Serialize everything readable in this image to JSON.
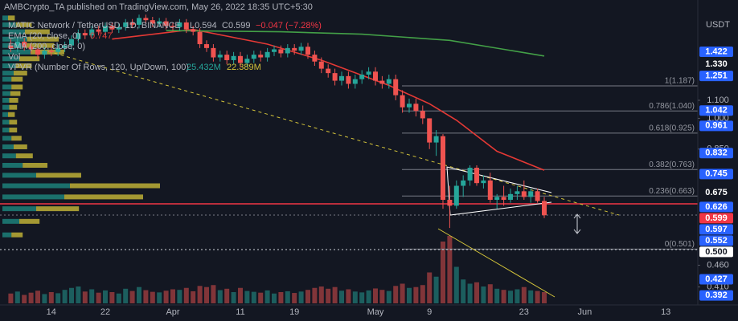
{
  "chart_data": {
    "type": "candlestick",
    "title": "AMBCrypto_TA published on TradingView.com, May 26, 2022 18:35 UTC+5:30",
    "symbol": "MATIC Network / TetherUSD, 1D, BINANCE",
    "ohlc_text": [
      "L0.594",
      "C0.599",
      "−0.047 (−7.28%)"
    ],
    "currency": "USDT",
    "categories": [
      null,
      null,
      null,
      null,
      null,
      null,
      "14",
      null,
      null,
      null,
      null,
      null,
      null,
      null,
      "22",
      null,
      null,
      null,
      null,
      null,
      null,
      null,
      null,
      null,
      "Apr",
      null,
      null,
      null,
      null,
      null,
      null,
      null,
      null,
      null,
      "11",
      null,
      null,
      null,
      null,
      null,
      null,
      null,
      "19",
      null,
      null,
      null,
      null,
      null,
      null,
      null,
      null,
      null,
      null,
      null,
      "May",
      null,
      null,
      null,
      null,
      null,
      null,
      null,
      "9",
      null,
      null,
      null,
      null,
      null,
      null,
      null,
      null,
      null,
      null,
      null,
      null,
      null,
      "23",
      null,
      null,
      null,
      null,
      null,
      null,
      null,
      null,
      "Jun",
      null,
      null,
      null,
      null,
      null,
      null,
      null,
      null,
      null,
      null,
      null,
      "13",
      null,
      null
    ],
    "open": [
      1.47,
      1.45,
      1.5,
      1.46,
      1.44,
      1.4,
      1.43,
      1.42,
      1.45,
      1.47,
      1.52,
      1.57,
      1.55,
      1.6,
      1.58,
      1.63,
      1.6,
      1.62,
      1.66,
      1.64,
      1.7,
      1.68,
      1.65,
      1.67,
      1.63,
      1.62,
      1.66,
      1.6,
      1.58,
      1.48,
      1.45,
      1.38,
      1.4,
      1.36,
      1.39,
      1.34,
      1.37,
      1.4,
      1.38,
      1.42,
      1.44,
      1.41,
      1.45,
      1.43,
      1.46,
      1.4,
      1.35,
      1.3,
      1.27,
      1.22,
      1.25,
      1.2,
      1.23,
      1.26,
      1.28,
      1.22,
      1.2,
      1.23,
      1.13,
      1.06,
      1.08,
      1.04,
      1.0,
      0.88,
      0.91,
      0.65,
      0.63,
      0.7,
      0.72,
      0.77,
      0.71,
      0.72,
      0.65,
      0.66,
      0.65,
      0.67,
      0.68,
      0.66,
      0.68,
      0.646,
      null,
      null,
      null,
      null,
      null,
      null,
      null,
      null,
      null,
      null,
      null,
      null,
      null,
      null,
      null,
      null,
      null,
      null,
      null,
      null
    ],
    "high": [
      1.52,
      1.53,
      1.53,
      1.49,
      1.47,
      1.46,
      1.46,
      1.48,
      1.5,
      1.55,
      1.6,
      1.6,
      1.63,
      1.63,
      1.66,
      1.66,
      1.65,
      1.69,
      1.69,
      1.73,
      1.73,
      1.71,
      1.7,
      1.7,
      1.66,
      1.69,
      1.69,
      1.63,
      1.61,
      1.51,
      1.48,
      1.43,
      1.43,
      1.42,
      1.42,
      1.4,
      1.43,
      1.43,
      1.45,
      1.47,
      1.47,
      1.48,
      1.48,
      1.49,
      1.49,
      1.43,
      1.38,
      1.33,
      1.3,
      1.28,
      1.28,
      1.26,
      1.29,
      1.31,
      1.31,
      1.25,
      1.26,
      1.26,
      1.16,
      1.11,
      1.11,
      1.07,
      1.0,
      0.94,
      0.92,
      0.7,
      0.72,
      0.74,
      0.78,
      0.78,
      0.74,
      0.75,
      0.67,
      0.7,
      0.69,
      0.7,
      0.72,
      0.69,
      0.69,
      0.66,
      null,
      null,
      null,
      null,
      null,
      null,
      null,
      null,
      null,
      null,
      null,
      null,
      null,
      null,
      null,
      null,
      null,
      null,
      null,
      null
    ],
    "low": [
      1.42,
      1.42,
      1.43,
      1.41,
      1.37,
      1.37,
      1.39,
      1.39,
      1.42,
      1.44,
      1.49,
      1.52,
      1.52,
      1.55,
      1.55,
      1.57,
      1.57,
      1.59,
      1.61,
      1.61,
      1.65,
      1.62,
      1.62,
      1.6,
      1.59,
      1.59,
      1.57,
      1.55,
      1.45,
      1.42,
      1.35,
      1.35,
      1.33,
      1.33,
      1.31,
      1.31,
      1.34,
      1.35,
      1.35,
      1.39,
      1.38,
      1.38,
      1.4,
      1.4,
      1.37,
      1.32,
      1.27,
      1.24,
      1.19,
      1.19,
      1.17,
      1.17,
      1.2,
      1.23,
      1.19,
      1.17,
      1.17,
      1.1,
      1.03,
      1.03,
      1.01,
      0.97,
      0.85,
      0.82,
      0.62,
      0.56,
      0.62,
      0.66,
      0.7,
      0.7,
      0.69,
      0.64,
      0.62,
      0.63,
      0.64,
      0.65,
      0.65,
      0.64,
      0.64,
      0.59,
      null,
      null,
      null,
      null,
      null,
      null,
      null,
      null,
      null,
      null,
      null,
      null,
      null,
      null,
      null,
      null,
      null,
      null,
      null,
      null
    ],
    "close": [
      1.45,
      1.5,
      1.46,
      1.44,
      1.4,
      1.43,
      1.42,
      1.45,
      1.47,
      1.52,
      1.57,
      1.55,
      1.6,
      1.58,
      1.63,
      1.6,
      1.62,
      1.66,
      1.64,
      1.7,
      1.68,
      1.65,
      1.67,
      1.63,
      1.62,
      1.66,
      1.6,
      1.58,
      1.48,
      1.45,
      1.38,
      1.4,
      1.36,
      1.39,
      1.34,
      1.37,
      1.4,
      1.38,
      1.42,
      1.44,
      1.41,
      1.45,
      1.43,
      1.46,
      1.4,
      1.35,
      1.3,
      1.27,
      1.22,
      1.25,
      1.2,
      1.23,
      1.26,
      1.28,
      1.22,
      1.2,
      1.23,
      1.13,
      1.06,
      1.08,
      1.04,
      1.0,
      0.88,
      0.91,
      0.65,
      0.63,
      0.7,
      0.72,
      0.77,
      0.71,
      0.72,
      0.65,
      0.66,
      0.65,
      0.67,
      0.68,
      0.66,
      0.68,
      0.646,
      0.599,
      null,
      null,
      null,
      null,
      null,
      null,
      null,
      null,
      null,
      null,
      null,
      null,
      null,
      null,
      null,
      null,
      null,
      null,
      null,
      null
    ],
    "volume": [
      35,
      42,
      30,
      38,
      45,
      33,
      40,
      36,
      48,
      55,
      60,
      42,
      50,
      38,
      46,
      40,
      35,
      52,
      44,
      58,
      47,
      41,
      39,
      45,
      50,
      48,
      55,
      43,
      62,
      58,
      65,
      47,
      52,
      40,
      55,
      44,
      41,
      38,
      46,
      35,
      40,
      43,
      37,
      42,
      48,
      55,
      60,
      52,
      58,
      45,
      50,
      42,
      39,
      46,
      53,
      48,
      44,
      62,
      70,
      55,
      58,
      65,
      110,
      95,
      220,
      240,
      130,
      85,
      70,
      75,
      60,
      68,
      52,
      48,
      45,
      50,
      58,
      46,
      44,
      40,
      null,
      null,
      null,
      null,
      null,
      null,
      null,
      null,
      null,
      null,
      null,
      null,
      null,
      null,
      null,
      null,
      null,
      null,
      null,
      null
    ],
    "volume_label": "Vol",
    "up_color": "#26a69a",
    "down_color": "#ef5350",
    "log_scale": true,
    "ylim": [
      0.376,
      1.83
    ],
    "yticks": [
      {
        "value": 1.1,
        "label": "1.100"
      },
      {
        "value": 1.0,
        "label": "1.000"
      },
      {
        "value": 0.85,
        "label": "0.850"
      },
      {
        "value": 0.46,
        "label": "0.460"
      },
      {
        "value": 0.41,
        "label": "0.410"
      }
    ],
    "price_markers": [
      {
        "value": 1.422,
        "label": "1.422",
        "color": "#2962ff"
      },
      {
        "value": 1.33,
        "label": "1.330",
        "color": "#131722"
      },
      {
        "value": 1.251,
        "label": "1.251",
        "color": "#2962ff"
      },
      {
        "value": 1.042,
        "label": "1.042",
        "color": "#2962ff"
      },
      {
        "value": 0.961,
        "label": "0.961",
        "color": "#2962ff"
      },
      {
        "value": 0.832,
        "label": "0.832",
        "color": "#2962ff"
      },
      {
        "value": 0.745,
        "label": "0.745",
        "color": "#2962ff"
      },
      {
        "value": 0.675,
        "label": "0.675",
        "color": "#131722"
      },
      {
        "value": 0.626,
        "label": "0.626",
        "color": "#2962ff"
      },
      {
        "value": 0.599,
        "label": "0.599",
        "color": "#f23645"
      },
      {
        "value": 0.597,
        "label": "0.597",
        "color": "#2962ff"
      },
      {
        "value": 0.552,
        "label": "0.552",
        "color": "#2962ff"
      },
      {
        "value": 0.5,
        "label": "0.500",
        "color": "#ffffff"
      },
      {
        "value": 0.427,
        "label": "0.427",
        "color": "#2962ff"
      },
      {
        "value": 0.392,
        "label": "0.392",
        "color": "#2962ff"
      }
    ],
    "fib_levels": [
      {
        "value": 1.187,
        "label": "1(1.187)"
      },
      {
        "value": 1.04,
        "label": "0.786(1.040)"
      },
      {
        "value": 0.925,
        "label": "0.618(0.925)"
      },
      {
        "value": 0.763,
        "label": "0.382(0.763)"
      },
      {
        "value": 0.663,
        "label": "0.236(0.663)"
      },
      {
        "value": 0.501,
        "label": "0(0.501)"
      }
    ],
    "lines": [
      {
        "name": "EMA (20, close, 0)",
        "value_label": "0.747",
        "color": "#e53935",
        "x": [
          15,
          27,
          38,
          46,
          56,
          62,
          66,
          72,
          79
        ],
        "values": [
          1.52,
          1.6,
          1.48,
          1.36,
          1.19,
          1.08,
          0.99,
          0.84,
          0.76
        ]
      },
      {
        "name": "EMA (200, close, 0)",
        "color": "#43a047",
        "x": [
          23,
          40,
          52,
          65,
          79
        ],
        "values": [
          1.59,
          1.58,
          1.56,
          1.51,
          1.39
        ]
      }
    ],
    "vpvr": {
      "name": "VPVR (Number Of Rows, 120, Up/Down, 100)",
      "stats": [
        "25.432M",
        "22.389M"
      ],
      "up_color": "#1f8f86",
      "down_color": "#d4c43a",
      "prices": [
        1.7,
        1.64,
        1.58,
        1.52,
        1.47,
        1.42,
        1.37,
        1.32,
        1.27,
        1.23,
        1.18,
        1.14,
        1.1,
        1.06,
        1.02,
        0.98,
        0.94,
        0.9,
        0.86,
        0.82,
        0.78,
        0.74,
        0.7,
        0.66,
        0.62,
        0.58,
        0.54
      ],
      "up": [
        5,
        12,
        20,
        22,
        20,
        25,
        15,
        12,
        10,
        8,
        8,
        7,
        6,
        6,
        5,
        6,
        6,
        8,
        10,
        12,
        18,
        30,
        60,
        55,
        30,
        15,
        8
      ],
      "down": [
        6,
        14,
        22,
        28,
        26,
        30,
        18,
        14,
        12,
        10,
        10,
        9,
        8,
        7,
        6,
        7,
        7,
        9,
        12,
        15,
        22,
        40,
        80,
        70,
        38,
        18,
        10
      ]
    }
  }
}
